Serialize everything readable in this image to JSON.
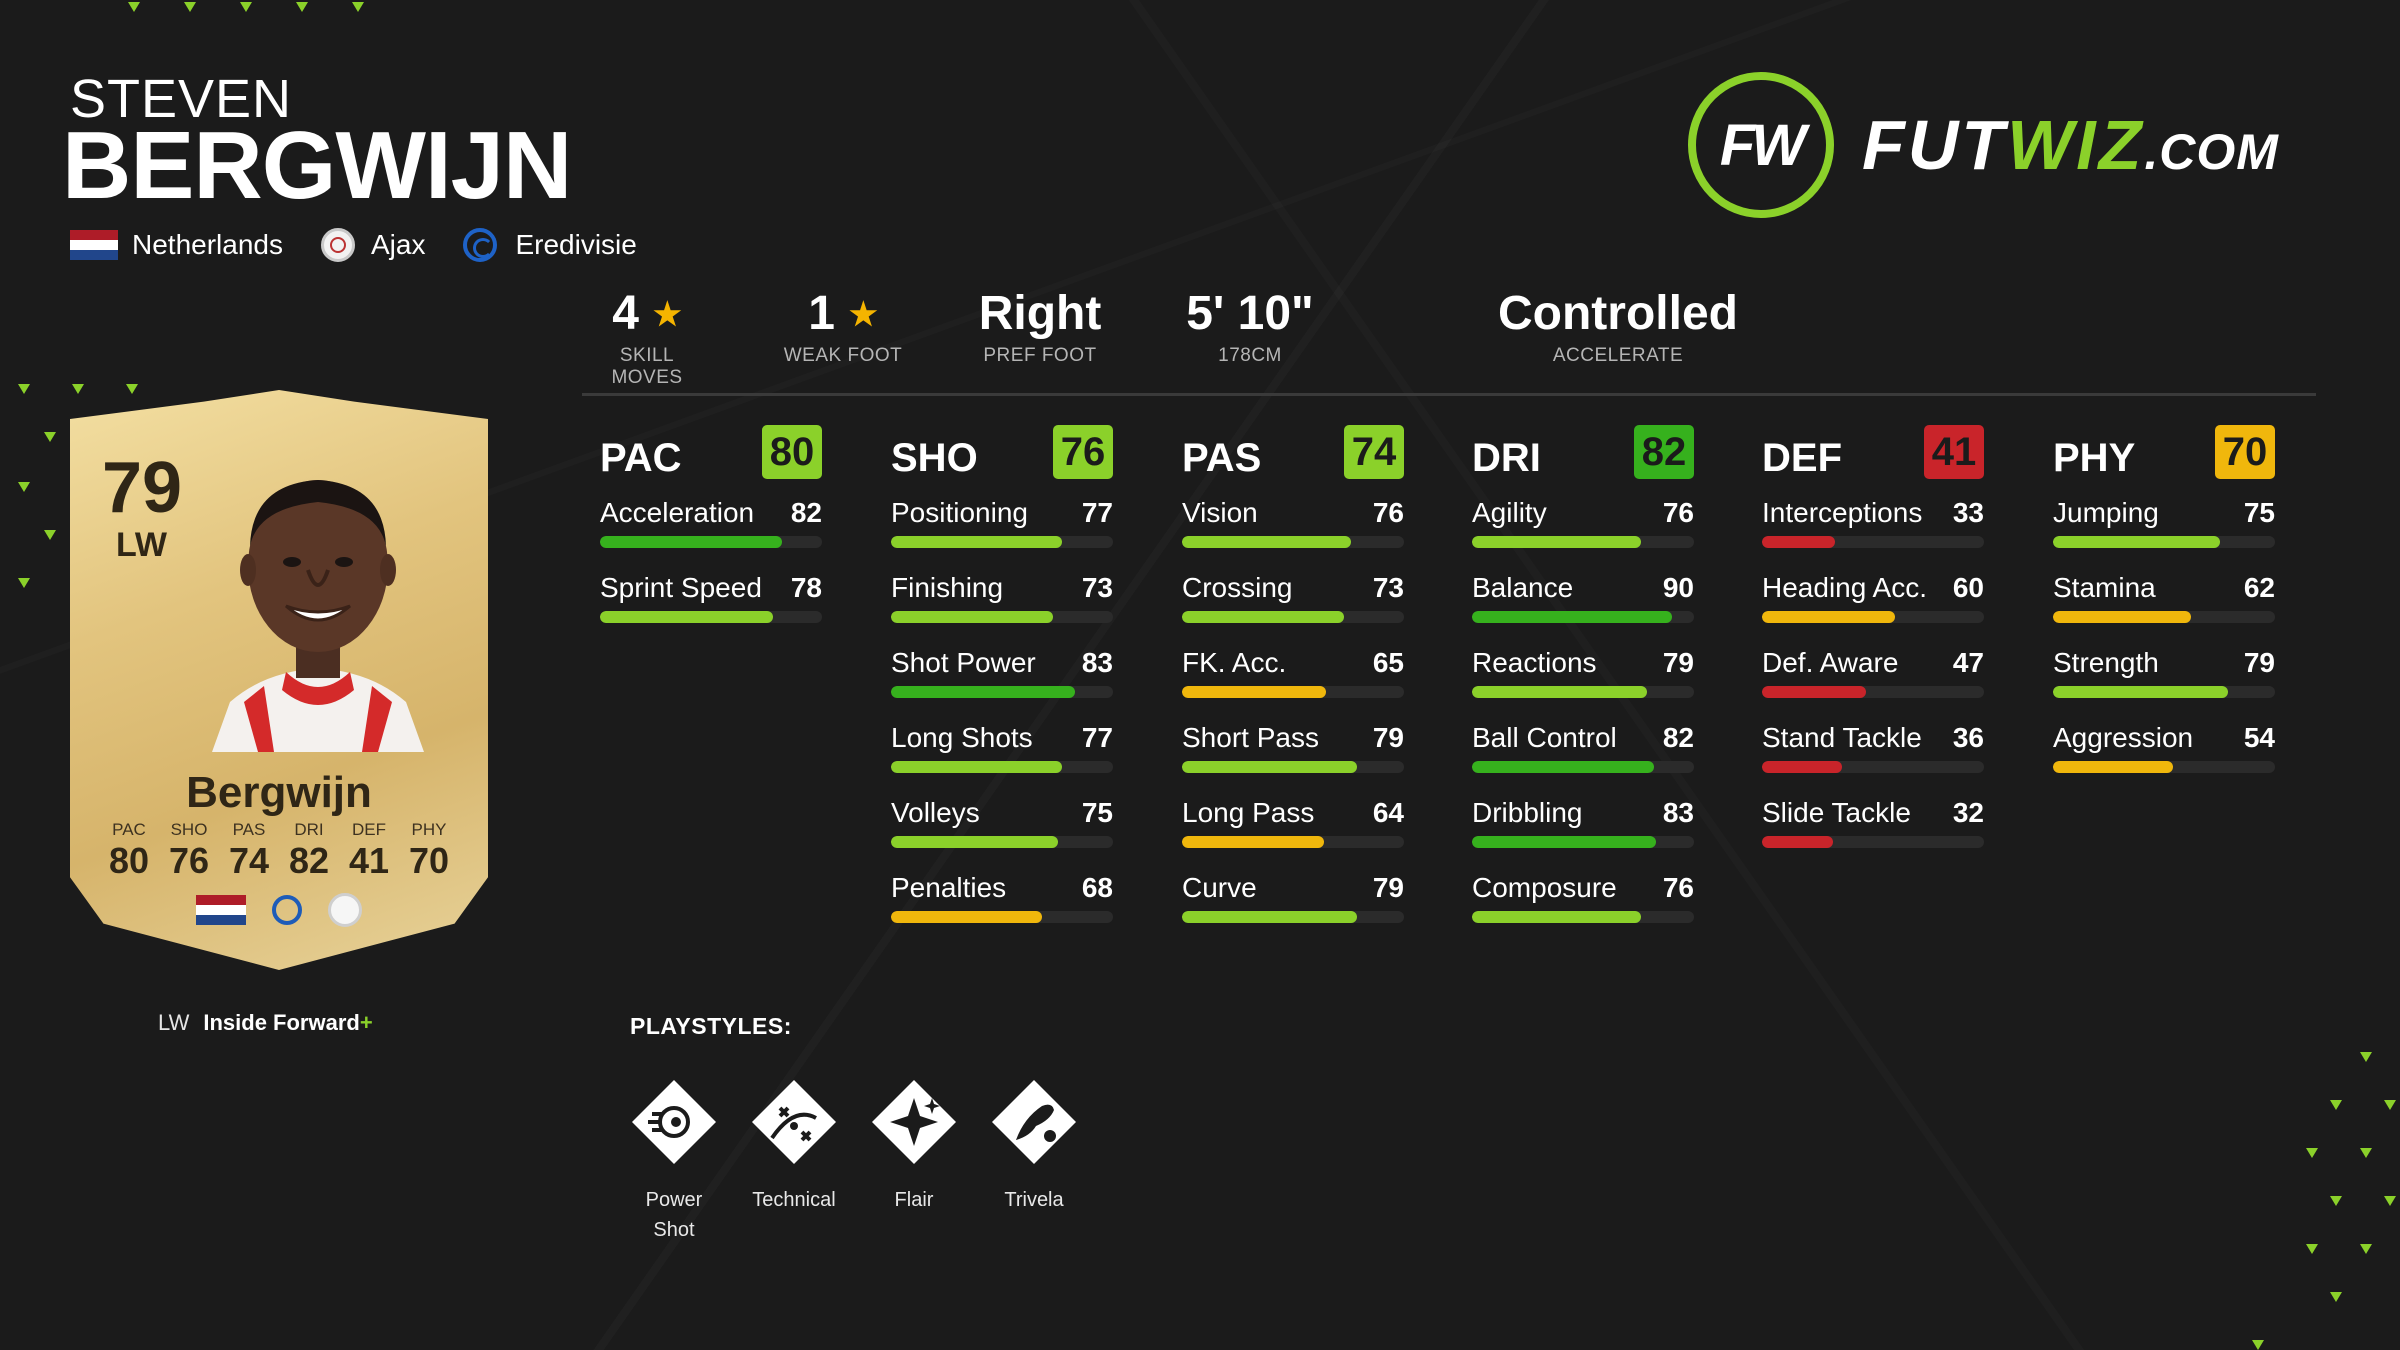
{
  "player": {
    "first_name": "STEVEN",
    "last_name": "BERGWIJN",
    "nation": "Netherlands",
    "club": "Ajax",
    "league": "Eredivisie"
  },
  "logo": {
    "prefix": "FUT",
    "highlight": "WIZ",
    "suffix": ".COM",
    "mark": "FW"
  },
  "info": [
    {
      "value": "4",
      "star": true,
      "label": "SKILL MOVES"
    },
    {
      "value": "1",
      "star": true,
      "label": "WEAK FOOT"
    },
    {
      "value": "Right",
      "star": false,
      "label": "PREF FOOT"
    },
    {
      "value": "5' 10\"",
      "star": false,
      "label": "178CM"
    },
    {
      "value": "Controlled",
      "star": false,
      "label": "ACCELERATE"
    }
  ],
  "card": {
    "rating": "79",
    "position": "LW",
    "name": "Bergwijn",
    "stats": [
      {
        "name": "PAC",
        "value": "80"
      },
      {
        "name": "SHO",
        "value": "76"
      },
      {
        "name": "PAS",
        "value": "74"
      },
      {
        "name": "DRI",
        "value": "82"
      },
      {
        "name": "DEF",
        "value": "41"
      },
      {
        "name": "PHY",
        "value": "70"
      }
    ]
  },
  "role": {
    "position": "LW",
    "name": "Inside Forward",
    "plus": "+"
  },
  "colors": {
    "green": "#8bd12a",
    "dark_green": "#36b11d",
    "yellow": "#f0b70c",
    "red": "#c9242a",
    "track": "#2b2b2b"
  },
  "categories": [
    {
      "name": "PAC",
      "value": 80,
      "color": "#8bd12a",
      "attributes": [
        {
          "name": "Acceleration",
          "value": 82
        },
        {
          "name": "Sprint Speed",
          "value": 78
        }
      ]
    },
    {
      "name": "SHO",
      "value": 76,
      "color": "#8bd12a",
      "attributes": [
        {
          "name": "Positioning",
          "value": 77
        },
        {
          "name": "Finishing",
          "value": 73
        },
        {
          "name": "Shot Power",
          "value": 83
        },
        {
          "name": "Long Shots",
          "value": 77
        },
        {
          "name": "Volleys",
          "value": 75
        },
        {
          "name": "Penalties",
          "value": 68
        }
      ]
    },
    {
      "name": "PAS",
      "value": 74,
      "color": "#8bd12a",
      "attributes": [
        {
          "name": "Vision",
          "value": 76
        },
        {
          "name": "Crossing",
          "value": 73
        },
        {
          "name": "FK. Acc.",
          "value": 65
        },
        {
          "name": "Short Pass",
          "value": 79
        },
        {
          "name": "Long Pass",
          "value": 64
        },
        {
          "name": "Curve",
          "value": 79
        }
      ]
    },
    {
      "name": "DRI",
      "value": 82,
      "color": "#36b11d",
      "attributes": [
        {
          "name": "Agility",
          "value": 76
        },
        {
          "name": "Balance",
          "value": 90
        },
        {
          "name": "Reactions",
          "value": 79
        },
        {
          "name": "Ball Control",
          "value": 82
        },
        {
          "name": "Dribbling",
          "value": 83
        },
        {
          "name": "Composure",
          "value": 76
        }
      ]
    },
    {
      "name": "DEF",
      "value": 41,
      "color": "#c9242a",
      "attributes": [
        {
          "name": "Interceptions",
          "value": 33
        },
        {
          "name": "Heading Acc.",
          "value": 60
        },
        {
          "name": "Def. Aware",
          "value": 47
        },
        {
          "name": "Stand Tackle",
          "value": 36
        },
        {
          "name": "Slide Tackle",
          "value": 32
        }
      ]
    },
    {
      "name": "PHY",
      "value": 70,
      "color": "#f0b70c",
      "attributes": [
        {
          "name": "Jumping",
          "value": 75
        },
        {
          "name": "Stamina",
          "value": 62
        },
        {
          "name": "Strength",
          "value": 79
        },
        {
          "name": "Aggression",
          "value": 54
        }
      ]
    }
  ],
  "playstyles": {
    "title": "PLAYSTYLES:",
    "items": [
      {
        "label": "Power Shot",
        "icon": "power-shot-icon"
      },
      {
        "label": "Technical",
        "icon": "technical-icon"
      },
      {
        "label": "Flair",
        "icon": "flair-icon"
      },
      {
        "label": "Trivela",
        "icon": "trivela-icon"
      }
    ]
  }
}
